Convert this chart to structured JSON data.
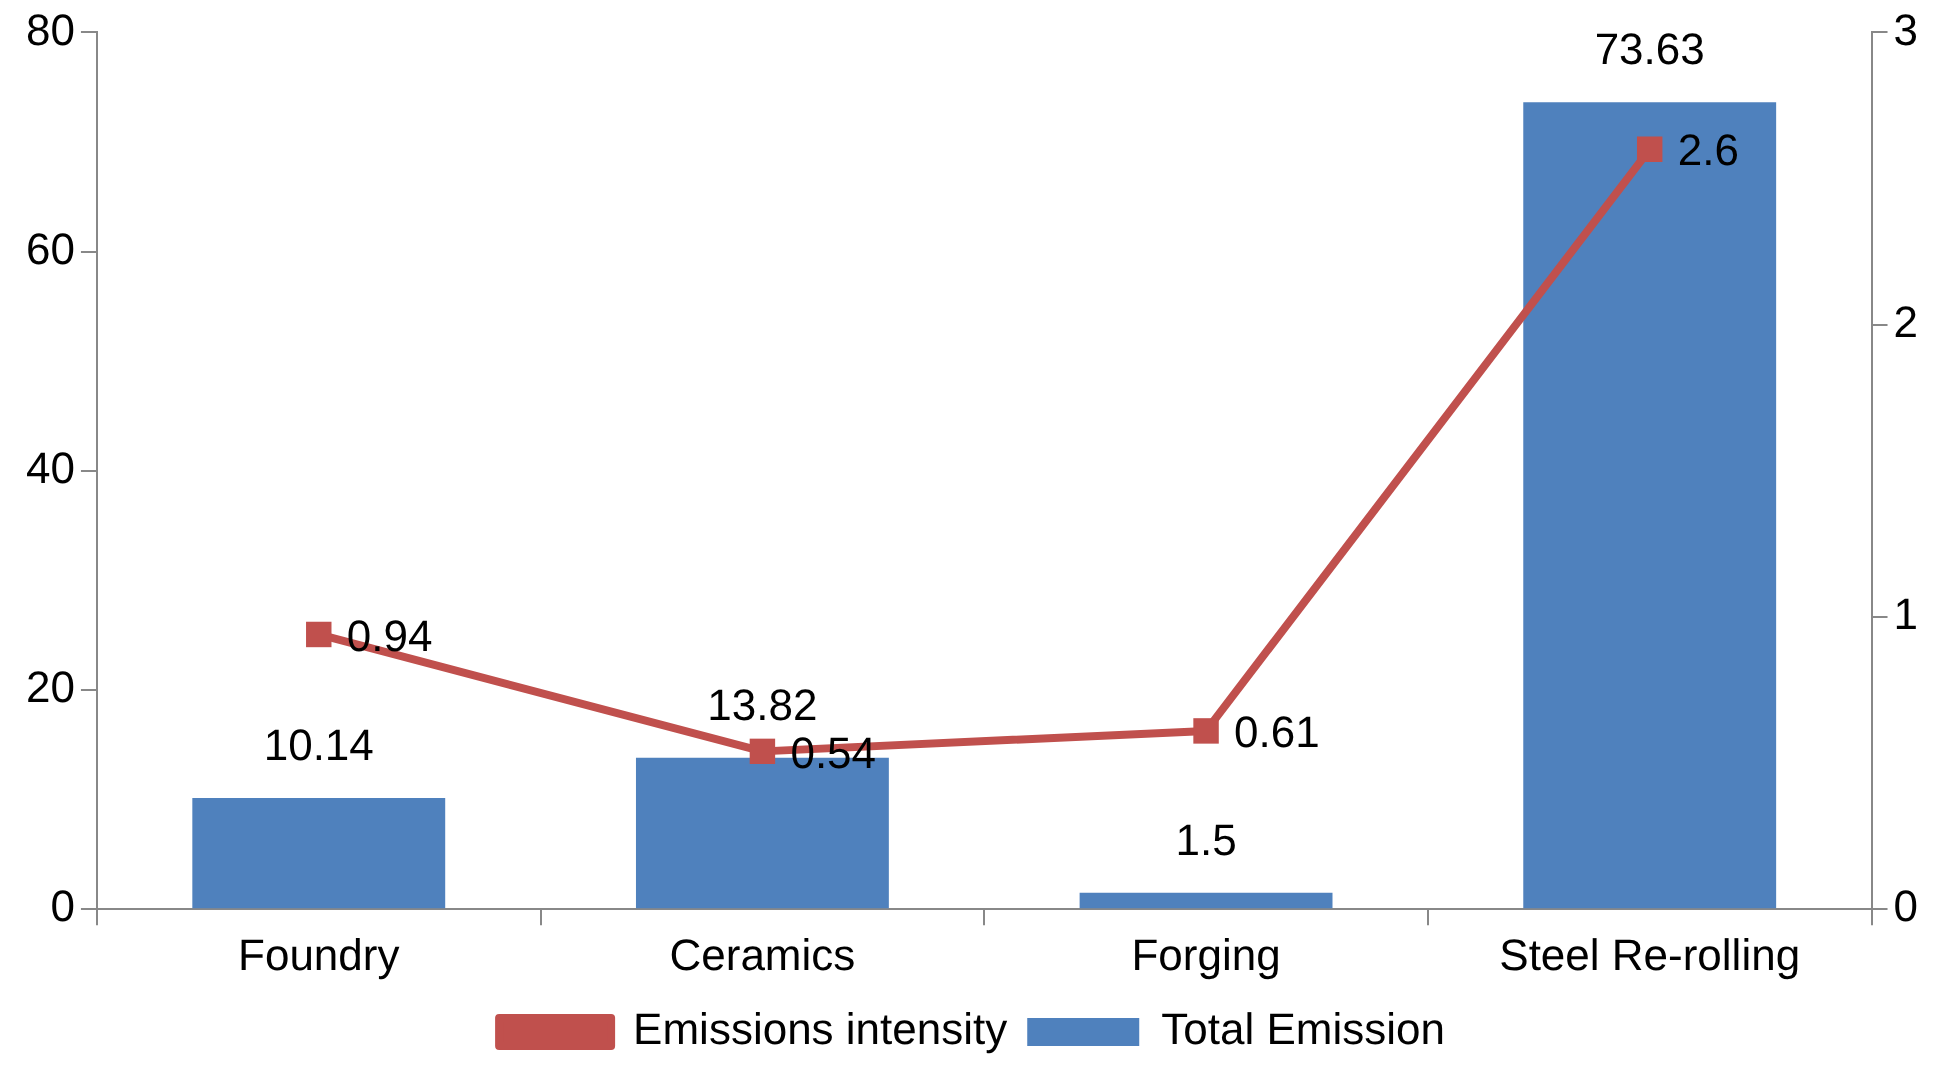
{
  "chart_data": {
    "type": "bar",
    "categories": [
      "Foundry",
      "Ceramics",
      "Forging",
      "Steel Re-rolling"
    ],
    "series": [
      {
        "name": "Total Emission",
        "color": "#4f81bd",
        "values": [
          10.14,
          13.82,
          1.5,
          73.63
        ]
      },
      {
        "name": "Emissions intensity",
        "type": "line",
        "axis": "y2",
        "color": "#c0504d",
        "values": [
          0.94,
          0.54,
          0.61,
          2.6
        ]
      }
    ],
    "ylim": [
      0,
      80
    ],
    "yticks": [
      0,
      20,
      40,
      60,
      80
    ],
    "y2lim": [
      0,
      3
    ],
    "y2ticks": [
      0,
      1,
      2,
      3
    ],
    "grid": false,
    "legend": "bottom",
    "marker": "square",
    "line_style": "solid",
    "data_labels": true
  }
}
